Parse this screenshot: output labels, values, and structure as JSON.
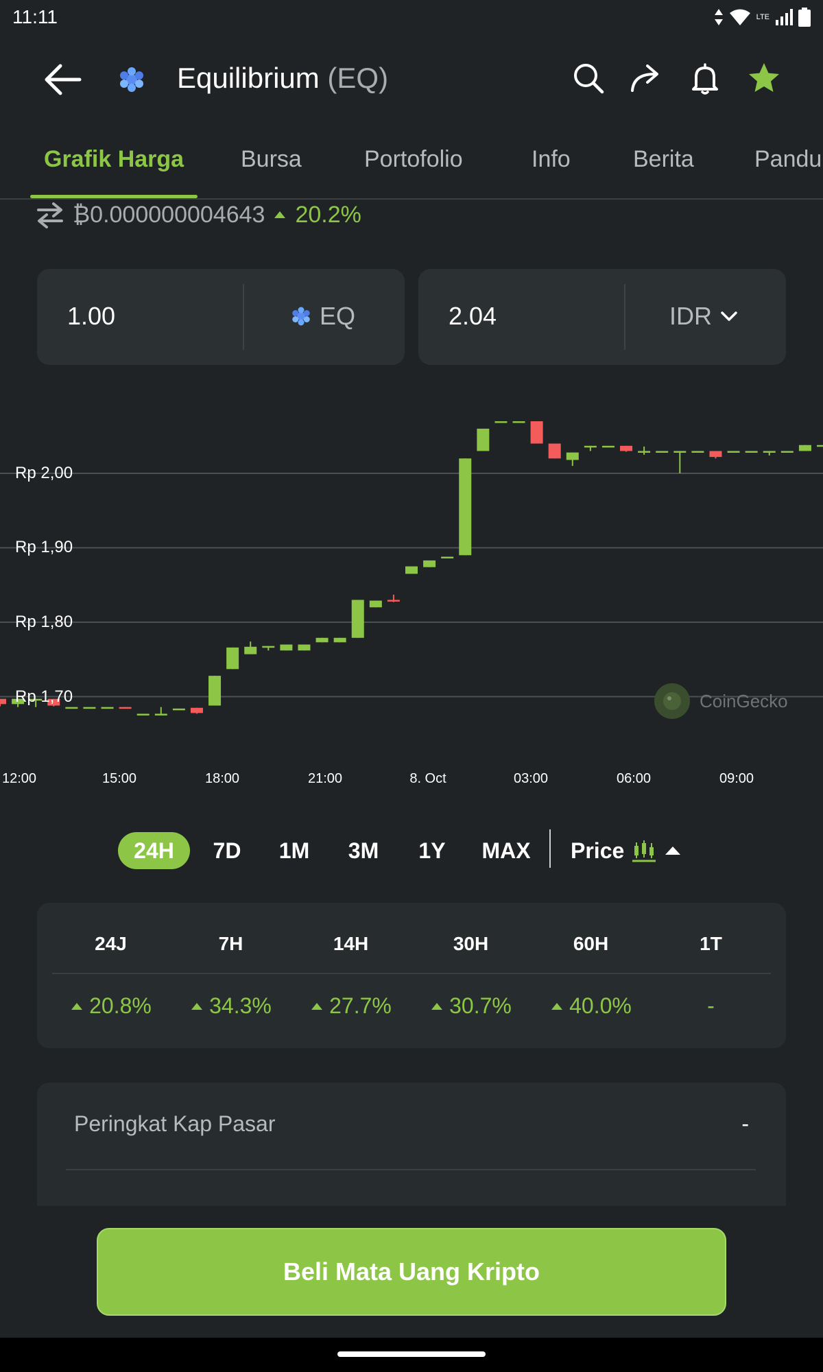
{
  "status_bar": {
    "time": "11:11",
    "network": "LTE"
  },
  "header": {
    "coin_name": "Equilibrium",
    "coin_symbol": "(EQ)",
    "icons": [
      "back-arrow-icon",
      "search-icon",
      "share-icon",
      "bell-icon",
      "star-icon"
    ],
    "star_color": "#8dc647"
  },
  "tabs": [
    {
      "label": "Grafik Harga",
      "active": true
    },
    {
      "label": "Bursa"
    },
    {
      "label": "Portofolio"
    },
    {
      "label": "Info"
    },
    {
      "label": "Berita"
    },
    {
      "label": "Pandu"
    }
  ],
  "btc_price": {
    "value": "₿0.000000004643",
    "change": "20.2%"
  },
  "converter": {
    "from_value": "1.00",
    "from_unit": "EQ",
    "to_value": "2.04",
    "to_unit": "IDR"
  },
  "chart_data": {
    "type": "candlestick",
    "y_ticks": [
      "Rp 2,00",
      "Rp 1,90",
      "Rp 1,80",
      "Rp 1,70"
    ],
    "y_tick_values": [
      2.0,
      1.9,
      1.8,
      1.7
    ],
    "x_ticks": [
      "12:00",
      "15:00",
      "18:00",
      "21:00",
      "8. Oct",
      "03:00",
      "06:00",
      "09:00"
    ],
    "ylim": [
      1.61,
      2.09
    ],
    "up_color": "#8dc647",
    "down_color": "#f45b5b",
    "candles": [
      {
        "o": 1.697,
        "h": 1.697,
        "l": 1.687,
        "c": 1.69
      },
      {
        "o": 1.69,
        "h": 1.697,
        "l": 1.686,
        "c": 1.697
      },
      {
        "o": 1.697,
        "h": 1.697,
        "l": 1.686,
        "c": 1.697
      },
      {
        "o": 1.697,
        "h": 1.697,
        "l": 1.687,
        "c": 1.688
      },
      {
        "o": 1.686,
        "h": 1.686,
        "l": 1.686,
        "c": 1.686
      },
      {
        "o": 1.686,
        "h": 1.686,
        "l": 1.686,
        "c": 1.686
      },
      {
        "o": 1.686,
        "h": 1.686,
        "l": 1.686,
        "c": 1.686
      },
      {
        "o": 1.686,
        "h": 1.686,
        "l": 1.685,
        "c": 1.685
      },
      {
        "o": 1.677,
        "h": 1.677,
        "l": 1.677,
        "c": 1.677
      },
      {
        "o": 1.677,
        "h": 1.686,
        "l": 1.675,
        "c": 1.677
      },
      {
        "o": 1.684,
        "h": 1.684,
        "l": 1.684,
        "c": 1.684
      },
      {
        "o": 1.685,
        "h": 1.685,
        "l": 1.677,
        "c": 1.678
      },
      {
        "o": 1.688,
        "h": 1.728,
        "l": 1.688,
        "c": 1.728
      },
      {
        "o": 1.737,
        "h": 1.766,
        "l": 1.737,
        "c": 1.766
      },
      {
        "o": 1.757,
        "h": 1.774,
        "l": 1.757,
        "c": 1.767
      },
      {
        "o": 1.768,
        "h": 1.768,
        "l": 1.762,
        "c": 1.768
      },
      {
        "o": 1.762,
        "h": 1.77,
        "l": 1.762,
        "c": 1.77
      },
      {
        "o": 1.762,
        "h": 1.77,
        "l": 1.762,
        "c": 1.77
      },
      {
        "o": 1.773,
        "h": 1.779,
        "l": 1.773,
        "c": 1.779
      },
      {
        "o": 1.773,
        "h": 1.779,
        "l": 1.773,
        "c": 1.779
      },
      {
        "o": 1.779,
        "h": 1.83,
        "l": 1.779,
        "c": 1.83
      },
      {
        "o": 1.82,
        "h": 1.829,
        "l": 1.82,
        "c": 1.829
      },
      {
        "o": 1.83,
        "h": 1.837,
        "l": 1.827,
        "c": 1.829
      },
      {
        "o": 1.865,
        "h": 1.875,
        "l": 1.865,
        "c": 1.875
      },
      {
        "o": 1.874,
        "h": 1.883,
        "l": 1.874,
        "c": 1.883
      },
      {
        "o": 1.888,
        "h": 1.888,
        "l": 1.888,
        "c": 1.888
      },
      {
        "o": 1.89,
        "h": 2.02,
        "l": 1.89,
        "c": 2.02
      },
      {
        "o": 2.03,
        "h": 2.06,
        "l": 2.03,
        "c": 2.06
      },
      {
        "o": 2.07,
        "h": 2.07,
        "l": 2.07,
        "c": 2.07
      },
      {
        "o": 2.07,
        "h": 2.07,
        "l": 2.07,
        "c": 2.07
      },
      {
        "o": 2.07,
        "h": 2.07,
        "l": 2.04,
        "c": 2.04
      },
      {
        "o": 2.04,
        "h": 2.04,
        "l": 2.02,
        "c": 2.02
      },
      {
        "o": 2.018,
        "h": 2.028,
        "l": 2.01,
        "c": 2.028
      },
      {
        "o": 2.037,
        "h": 2.037,
        "l": 2.03,
        "c": 2.037
      },
      {
        "o": 2.037,
        "h": 2.037,
        "l": 2.037,
        "c": 2.037
      },
      {
        "o": 2.037,
        "h": 2.037,
        "l": 2.029,
        "c": 2.03
      },
      {
        "o": 2.03,
        "h": 2.036,
        "l": 2.025,
        "c": 2.03
      },
      {
        "o": 2.03,
        "h": 2.03,
        "l": 2.03,
        "c": 2.03
      },
      {
        "o": 2.03,
        "h": 2.03,
        "l": 2.0,
        "c": 2.03
      },
      {
        "o": 2.03,
        "h": 2.03,
        "l": 2.03,
        "c": 2.03
      },
      {
        "o": 2.03,
        "h": 2.03,
        "l": 2.02,
        "c": 2.022
      },
      {
        "o": 2.03,
        "h": 2.03,
        "l": 2.03,
        "c": 2.03
      },
      {
        "o": 2.03,
        "h": 2.03,
        "l": 2.03,
        "c": 2.03
      },
      {
        "o": 2.03,
        "h": 2.03,
        "l": 2.024,
        "c": 2.03
      },
      {
        "o": 2.03,
        "h": 2.03,
        "l": 2.03,
        "c": 2.03
      },
      {
        "o": 2.03,
        "h": 2.038,
        "l": 2.03,
        "c": 2.038
      },
      {
        "o": 2.038,
        "h": 2.038,
        "l": 2.038,
        "c": 2.038
      }
    ],
    "watermark": "CoinGecko"
  },
  "range_selector": {
    "items": [
      "24H",
      "7D",
      "1M",
      "3M",
      "1Y",
      "MAX"
    ],
    "active": "24H",
    "price_label": "Price",
    "price_icon": "candlestick-icon"
  },
  "performance": {
    "headers": [
      "24J",
      "7H",
      "14H",
      "30H",
      "60H",
      "1T"
    ],
    "values": [
      "20.8%",
      "34.3%",
      "27.7%",
      "30.7%",
      "40.0%",
      "-"
    ],
    "positive_color": "#8dc647"
  },
  "market_rank": {
    "label": "Peringkat Kap Pasar",
    "value": "-"
  },
  "buy_button": {
    "label": "Beli Mata Uang Kripto"
  }
}
